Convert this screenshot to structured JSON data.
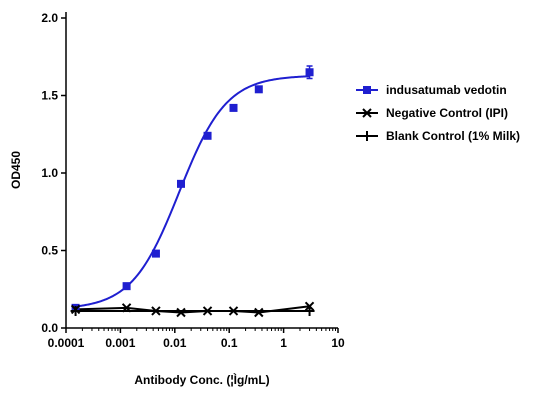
{
  "chart_data": {
    "type": "line",
    "title": "",
    "xlabel": "Antibody Conc. (¦Ìg/mL)",
    "ylabel": "OD450",
    "xscale": "log",
    "xlim": [
      0.0001,
      10
    ],
    "ylim": [
      0,
      2.0
    ],
    "x_ticks": [
      "0.0001",
      "0.001",
      "0.01",
      "0.1",
      "1",
      "10"
    ],
    "y_ticks": [
      "0.0",
      "0.5",
      "1.0",
      "1.5",
      "2.0"
    ],
    "grid": false,
    "legend_position": "right",
    "colors": {
      "main": "#1f1fd0",
      "control": "#000000"
    },
    "series": [
      {
        "name": "indusatumab vedotin",
        "marker": "square",
        "color": "#1f1fd0",
        "x": [
          0.00015,
          0.0013,
          0.0045,
          0.013,
          0.04,
          0.12,
          0.35,
          3.0
        ],
        "y": [
          0.13,
          0.27,
          0.48,
          0.93,
          1.24,
          1.42,
          1.54,
          1.65
        ],
        "error": [
          0.01,
          0.01,
          0.01,
          0.01,
          0.01,
          0.01,
          0.01,
          0.04
        ],
        "fit": {
          "bottom": 0.12,
          "top": 1.63,
          "ec50": 0.012,
          "hill": 1.0
        }
      },
      {
        "name": "Negative Control (IPI)",
        "marker": "x",
        "color": "#000000",
        "x": [
          0.00015,
          0.0013,
          0.0045,
          0.013,
          0.04,
          0.12,
          0.35,
          3.0
        ],
        "y": [
          0.12,
          0.13,
          0.11,
          0.1,
          0.11,
          0.11,
          0.1,
          0.14
        ]
      },
      {
        "name": "Blank Control (1% Milk)",
        "marker": "plus",
        "color": "#000000",
        "x": [
          0.00015,
          3.0
        ],
        "y": [
          0.11,
          0.11
        ]
      }
    ]
  }
}
